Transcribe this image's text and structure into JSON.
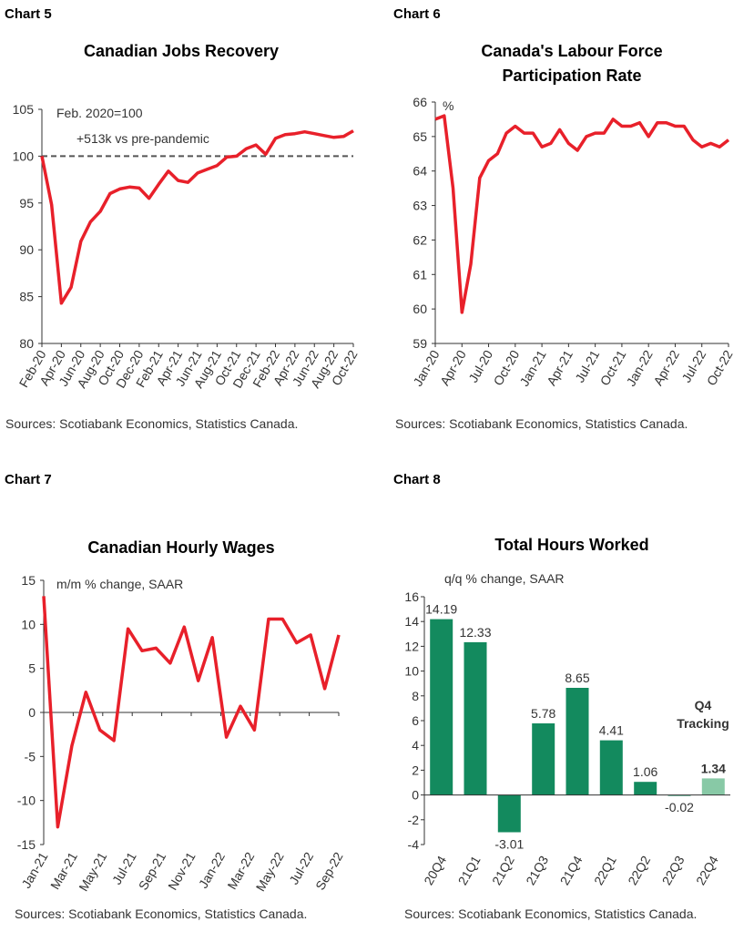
{
  "charts": [
    {
      "label": "Chart 5",
      "source": "Sources: Scotiabank Economics, Statistics Canada.",
      "chart_data": {
        "type": "line",
        "title": "Canadian Jobs Recovery",
        "title2": "",
        "ylim": [
          80,
          105
        ],
        "yticks": [
          "80",
          "85",
          "90",
          "95",
          "100",
          "105"
        ],
        "xlabels": [
          "Feb-20",
          "Apr-20",
          "Jun-20",
          "Aug-20",
          "Oct-20",
          "Dec-20",
          "Feb-21",
          "Apr-21",
          "Jun-21",
          "Aug-21",
          "Oct-21",
          "Dec-21",
          "Feb-22",
          "Apr-22",
          "Jun-22",
          "Aug-22",
          "Oct-22"
        ],
        "annotations": [
          "Feb. 2020=100",
          "+513k vs pre-pandemic"
        ],
        "reference_line": 100,
        "series": [
          {
            "color": "#e8202a",
            "values": [
              100.0,
              94.8,
              84.3,
              86.0,
              90.9,
              93.0,
              94.1,
              96.0,
              96.5,
              96.7,
              96.6,
              95.5,
              97.0,
              98.4,
              97.4,
              97.2,
              98.2,
              98.6,
              99.0,
              99.9,
              100.0,
              100.8,
              101.2,
              100.2,
              101.9,
              102.3,
              102.4,
              102.6,
              102.4,
              102.2,
              102.0,
              102.1,
              102.7
            ]
          }
        ]
      }
    },
    {
      "label": "Chart 6",
      "source": "Sources: Scotiabank Economics, Statistics Canada.",
      "chart_data": {
        "type": "line",
        "title": "Canada's Labour Force",
        "title2": "Participation Rate",
        "ylim": [
          59,
          66
        ],
        "yticks": [
          "59",
          "60",
          "61",
          "62",
          "63",
          "64",
          "65",
          "66"
        ],
        "xlabels": [
          "Jan-20",
          "Apr-20",
          "Jul-20",
          "Oct-20",
          "Jan-21",
          "Apr-21",
          "Jul-21",
          "Oct-21",
          "Jan-22",
          "Apr-22",
          "Jul-22",
          "Oct-22"
        ],
        "annotations": [
          "%"
        ],
        "series": [
          {
            "color": "#e8202a",
            "values": [
              65.5,
              65.6,
              63.5,
              59.9,
              61.3,
              63.8,
              64.3,
              64.5,
              65.1,
              65.3,
              65.1,
              65.1,
              64.7,
              64.8,
              65.2,
              64.8,
              64.6,
              65.0,
              65.1,
              65.1,
              65.5,
              65.3,
              65.3,
              65.4,
              65.0,
              65.4,
              65.4,
              65.3,
              65.3,
              64.9,
              64.7,
              64.8,
              64.7,
              64.9
            ]
          }
        ]
      }
    },
    {
      "label": "Chart 7",
      "source": "Sources: Scotiabank Economics, Statistics Canada.",
      "chart_data": {
        "type": "line",
        "title": "Canadian Hourly Wages",
        "title2": "",
        "ylim": [
          -15,
          15
        ],
        "yticks": [
          "-15",
          "-10",
          "-5",
          "0",
          "5",
          "10",
          "15"
        ],
        "xlabels": [
          "Jan-21",
          "Mar-21",
          "May-21",
          "Jul-21",
          "Sep-21",
          "Nov-21",
          "Jan-22",
          "Mar-22",
          "May-22",
          "Jul-22",
          "Sep-22"
        ],
        "annotations": [
          "m/m % change, SAAR"
        ],
        "series": [
          {
            "color": "#e8202a",
            "values": [
              13.2,
              -13.0,
              -3.8,
              2.3,
              -2.0,
              -3.2,
              9.5,
              7.0,
              7.3,
              5.6,
              9.7,
              3.6,
              8.5,
              -2.8,
              0.7,
              -2.0,
              10.6,
              10.6,
              7.9,
              8.8,
              2.7,
              8.8
            ]
          }
        ]
      }
    },
    {
      "label": "Chart 8",
      "source": "Sources: Scotiabank Economics, Statistics Canada.",
      "chart_data": {
        "type": "bar",
        "title": "Total Hours Worked",
        "title2": "",
        "ylim": [
          -4,
          16
        ],
        "yticks": [
          "-4",
          "-2",
          "0",
          "2",
          "4",
          "6",
          "8",
          "10",
          "12",
          "14",
          "16"
        ],
        "categories": [
          "20Q4",
          "21Q1",
          "21Q2",
          "21Q3",
          "21Q4",
          "22Q1",
          "22Q2",
          "22Q3",
          "22Q4"
        ],
        "values": [
          14.19,
          12.33,
          -3.01,
          5.78,
          8.65,
          4.41,
          1.06,
          -0.02,
          1.34
        ],
        "data_labels": [
          "14.19",
          "12.33",
          "-3.01",
          "5.78",
          "8.65",
          "4.41",
          "1.06",
          "-0.02",
          "1.34"
        ],
        "annotations": [
          "q/q % change, SAAR"
        ],
        "tracking_label": [
          "Q4",
          "Tracking"
        ],
        "colors": {
          "bar": "#138a5e",
          "tracking": "#88c9a6"
        }
      }
    }
  ]
}
